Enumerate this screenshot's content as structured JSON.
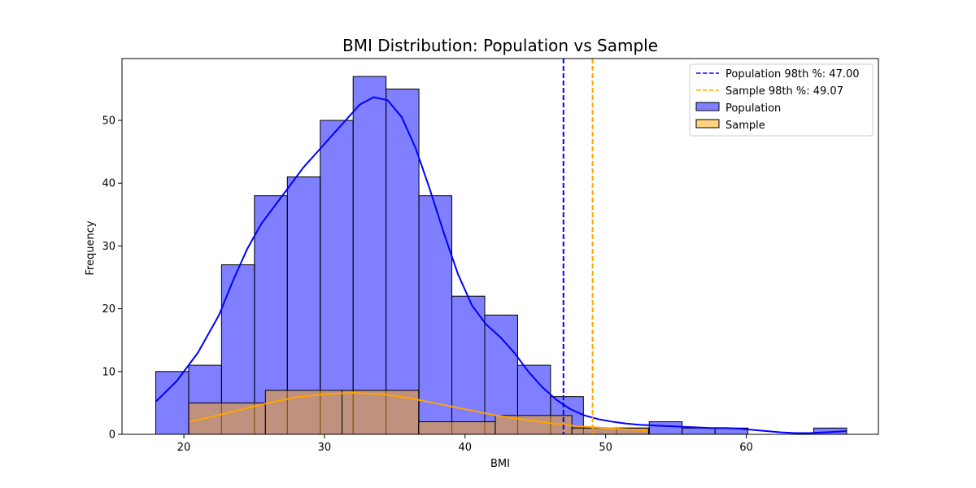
{
  "chart_data": {
    "type": "histogram",
    "title": "BMI Distribution: Population vs Sample",
    "xlabel": "BMI",
    "ylabel": "Frequency",
    "xlim": [
      15.6,
      69.4
    ],
    "ylim": [
      0,
      59.85
    ],
    "x_ticks": [
      20,
      30,
      40,
      50,
      60
    ],
    "y_ticks": [
      0,
      10,
      20,
      30,
      40,
      50
    ],
    "grid": false,
    "legend_position": "top-right",
    "series": [
      {
        "name": "Population",
        "kind": "bar",
        "color": "#0000ff",
        "fill_opacity": 0.5,
        "bins": [
          {
            "x0": 18.0,
            "x1": 20.34,
            "count": 10
          },
          {
            "x0": 20.34,
            "x1": 22.68,
            "count": 11
          },
          {
            "x0": 22.68,
            "x1": 25.02,
            "count": 27
          },
          {
            "x0": 25.02,
            "x1": 27.36,
            "count": 38
          },
          {
            "x0": 27.36,
            "x1": 29.7,
            "count": 41
          },
          {
            "x0": 29.7,
            "x1": 32.04,
            "count": 50
          },
          {
            "x0": 32.04,
            "x1": 34.38,
            "count": 57
          },
          {
            "x0": 34.38,
            "x1": 36.72,
            "count": 55
          },
          {
            "x0": 36.72,
            "x1": 39.06,
            "count": 38
          },
          {
            "x0": 39.06,
            "x1": 41.4,
            "count": 22
          },
          {
            "x0": 41.4,
            "x1": 43.74,
            "count": 19
          },
          {
            "x0": 43.74,
            "x1": 46.08,
            "count": 11
          },
          {
            "x0": 46.08,
            "x1": 48.42,
            "count": 6
          },
          {
            "x0": 48.42,
            "x1": 50.76,
            "count": 1
          },
          {
            "x0": 50.76,
            "x1": 53.1,
            "count": 1
          },
          {
            "x0": 53.1,
            "x1": 55.44,
            "count": 2
          },
          {
            "x0": 55.44,
            "x1": 57.78,
            "count": 1
          },
          {
            "x0": 57.78,
            "x1": 60.12,
            "count": 1
          },
          {
            "x0": 60.12,
            "x1": 62.46,
            "count": 0
          },
          {
            "x0": 62.46,
            "x1": 64.8,
            "count": 0
          },
          {
            "x0": 64.8,
            "x1": 67.14,
            "count": 1
          }
        ]
      },
      {
        "name": "Sample",
        "kind": "bar",
        "color": "#ffa500",
        "fill_opacity": 0.5,
        "bins": [
          {
            "x0": 20.35,
            "x1": 25.8,
            "count": 5
          },
          {
            "x0": 25.8,
            "x1": 31.25,
            "count": 7
          },
          {
            "x0": 31.25,
            "x1": 36.7,
            "count": 7
          },
          {
            "x0": 36.7,
            "x1": 42.15,
            "count": 2
          },
          {
            "x0": 42.15,
            "x1": 47.6,
            "count": 3
          },
          {
            "x0": 47.6,
            "x1": 53.05,
            "count": 1
          }
        ]
      }
    ],
    "kde": [
      {
        "name": "Population KDE",
        "color": "#0000ff",
        "points": [
          [
            18.0,
            5.2
          ],
          [
            19.5,
            8.5
          ],
          [
            21.0,
            13.0
          ],
          [
            22.5,
            19.0
          ],
          [
            23.5,
            24.5
          ],
          [
            24.5,
            29.5
          ],
          [
            25.5,
            33.5
          ],
          [
            26.5,
            36.5
          ],
          [
            27.5,
            39.5
          ],
          [
            28.5,
            42.5
          ],
          [
            29.5,
            45.0
          ],
          [
            30.5,
            47.5
          ],
          [
            31.5,
            50.0
          ],
          [
            32.5,
            52.5
          ],
          [
            33.5,
            53.7
          ],
          [
            34.5,
            53.2
          ],
          [
            35.5,
            50.5
          ],
          [
            36.5,
            45.5
          ],
          [
            37.5,
            39.0
          ],
          [
            38.5,
            32.0
          ],
          [
            39.5,
            25.5
          ],
          [
            40.5,
            20.5
          ],
          [
            41.5,
            17.5
          ],
          [
            42.5,
            15.5
          ],
          [
            43.5,
            13.0
          ],
          [
            44.5,
            10.0
          ],
          [
            45.5,
            7.5
          ],
          [
            46.5,
            5.5
          ],
          [
            47.5,
            4.0
          ],
          [
            48.5,
            3.0
          ],
          [
            49.5,
            2.4
          ],
          [
            50.5,
            2.0
          ],
          [
            51.5,
            1.7
          ],
          [
            52.5,
            1.5
          ],
          [
            53.5,
            1.4
          ],
          [
            54.5,
            1.3
          ],
          [
            55.5,
            1.2
          ],
          [
            56.5,
            1.1
          ],
          [
            57.5,
            1.0
          ],
          [
            58.5,
            1.0
          ],
          [
            59.5,
            0.9
          ],
          [
            60.5,
            0.7
          ],
          [
            61.5,
            0.5
          ],
          [
            62.5,
            0.3
          ],
          [
            63.5,
            0.2
          ],
          [
            64.5,
            0.2
          ],
          [
            65.5,
            0.3
          ],
          [
            67.1,
            0.5
          ]
        ]
      },
      {
        "name": "Sample KDE",
        "color": "#ffa500",
        "points": [
          [
            20.4,
            2.0
          ],
          [
            22.0,
            2.8
          ],
          [
            24.0,
            3.9
          ],
          [
            26.0,
            5.0
          ],
          [
            28.0,
            5.9
          ],
          [
            30.0,
            6.4
          ],
          [
            32.0,
            6.6
          ],
          [
            34.0,
            6.4
          ],
          [
            36.0,
            5.8
          ],
          [
            38.0,
            4.9
          ],
          [
            40.0,
            4.0
          ],
          [
            42.0,
            3.1
          ],
          [
            44.0,
            2.4
          ],
          [
            46.0,
            1.8
          ],
          [
            48.0,
            1.3
          ],
          [
            50.0,
            1.0
          ],
          [
            52.0,
            0.75
          ],
          [
            53.0,
            0.6
          ]
        ]
      }
    ],
    "reference_lines": [
      {
        "label": "Population 98th %: 47.00",
        "x": 47.0,
        "color": "#0000ff",
        "style": "dashed"
      },
      {
        "label": "Sample 98th %: 49.07",
        "x": 49.07,
        "color": "#ffa500",
        "style": "dashed"
      }
    ],
    "legend": [
      {
        "label": "Population 98th %: 47.00",
        "marker": "dashed-line",
        "color": "#0000ff"
      },
      {
        "label": "Sample 98th %: 49.07",
        "marker": "dashed-line",
        "color": "#ffa500"
      },
      {
        "label": "Population",
        "marker": "patch",
        "color": "#0000ff"
      },
      {
        "label": "Sample",
        "marker": "patch",
        "color": "#ffa500"
      }
    ]
  }
}
